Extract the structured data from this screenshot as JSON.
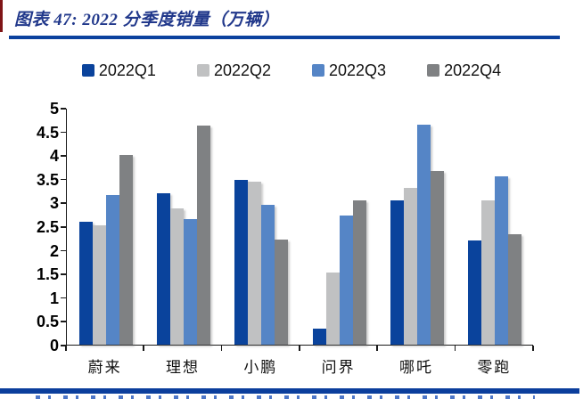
{
  "header": {
    "title": "图表 47:  2022 分季度销量（万辆）"
  },
  "legend": {
    "items": [
      {
        "label": "2022Q1",
        "color": "#0a439c"
      },
      {
        "label": "2022Q2",
        "color": "#c0c1c2"
      },
      {
        "label": "2022Q3",
        "color": "#5585c6"
      },
      {
        "label": "2022Q4",
        "color": "#7f8183"
      }
    ]
  },
  "chart_data": {
    "type": "bar",
    "title": "2022分季度销量（万辆）",
    "unit": "万辆",
    "categories": [
      "蔚来",
      "理想",
      "小鹏",
      "问界",
      "哪吒",
      "零跑"
    ],
    "series": [
      {
        "name": "2022Q1",
        "color": "#0a439c",
        "values": [
          2.6,
          3.2,
          3.47,
          0.33,
          3.04,
          2.2
        ]
      },
      {
        "name": "2022Q2",
        "color": "#c0c1c2",
        "values": [
          2.51,
          2.87,
          3.44,
          1.53,
          3.3,
          3.05
        ]
      },
      {
        "name": "2022Q3",
        "color": "#5585c6",
        "values": [
          3.16,
          2.65,
          2.96,
          2.73,
          4.65,
          3.55
        ]
      },
      {
        "name": "2022Q4",
        "color": "#7f8183",
        "values": [
          4.0,
          4.63,
          2.22,
          3.04,
          3.66,
          2.34
        ]
      }
    ],
    "ylim": [
      0,
      5
    ],
    "yticks": [
      "5",
      "4.5",
      "4",
      "3.5",
      "3",
      "2.5",
      "2",
      "1.5",
      "1",
      "0.5",
      "0"
    ],
    "grid": false,
    "legend_position": "top"
  },
  "colors": {
    "title_text": "#21388b",
    "title_rule": "#0b419e",
    "accent_bar": "#7f1416",
    "axis": "#1a1a1a",
    "footer_bar": "#0b3e9c"
  }
}
